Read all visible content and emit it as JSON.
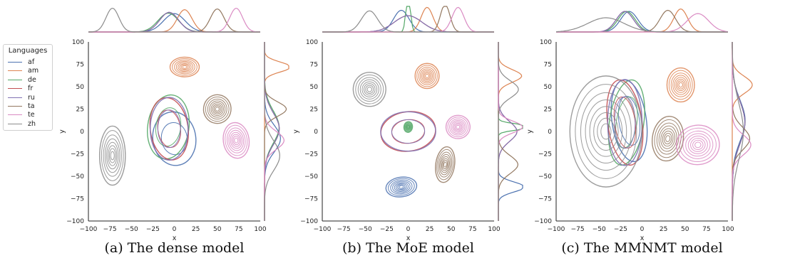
{
  "legend": {
    "title": "Languages",
    "items": [
      {
        "label": "af",
        "color": "#4C72B0"
      },
      {
        "label": "am",
        "color": "#DD8452"
      },
      {
        "label": "de",
        "color": "#55A868"
      },
      {
        "label": "fr",
        "color": "#C44E52"
      },
      {
        "label": "ru",
        "color": "#8172B3"
      },
      {
        "label": "ta",
        "color": "#937860"
      },
      {
        "label": "te",
        "color": "#DA8BC3"
      },
      {
        "label": "zh",
        "color": "#8C8C8C"
      }
    ]
  },
  "chart_data": [
    {
      "type": "scatter",
      "caption": "(a) The dense model",
      "xlabel": "x",
      "ylabel": "y",
      "xlim": [
        -100,
        100
      ],
      "ylim": [
        -100,
        100
      ],
      "xticks": [
        -100,
        -75,
        -50,
        -25,
        0,
        25,
        50,
        75,
        100
      ],
      "yticks": [
        -100,
        -75,
        -50,
        -25,
        0,
        25,
        50,
        75,
        100
      ],
      "series": [
        {
          "name": "af",
          "center": [
            0,
            -8
          ],
          "spread": [
            25,
            30
          ]
        },
        {
          "name": "am",
          "center": [
            12,
            72
          ],
          "spread": [
            17,
            11
          ]
        },
        {
          "name": "de",
          "center": [
            -7,
            5
          ],
          "spread": [
            24,
            36
          ]
        },
        {
          "name": "fr",
          "center": [
            -6,
            3
          ],
          "spread": [
            22,
            35
          ]
        },
        {
          "name": "ru",
          "center": [
            -6,
            3
          ],
          "spread": [
            22,
            35
          ]
        },
        {
          "name": "ta",
          "center": [
            50,
            25
          ],
          "spread": [
            16,
            16
          ]
        },
        {
          "name": "te",
          "center": [
            72,
            -10
          ],
          "spread": [
            15,
            20
          ]
        },
        {
          "name": "zh",
          "center": [
            -72,
            -27
          ],
          "spread": [
            15,
            33
          ]
        }
      ]
    },
    {
      "type": "scatter",
      "caption": "(b) The MoE model",
      "xlabel": "x",
      "ylabel": "y",
      "xlim": [
        -100,
        100
      ],
      "ylim": [
        -100,
        100
      ],
      "xticks": [
        -100,
        -75,
        -50,
        -25,
        0,
        25,
        50,
        75,
        100
      ],
      "yticks": [
        -100,
        -75,
        -50,
        -25,
        0,
        25,
        50,
        75,
        100
      ],
      "series": [
        {
          "name": "af",
          "center": [
            -8,
            -62
          ],
          "spread": [
            18,
            11
          ]
        },
        {
          "name": "am",
          "center": [
            22,
            62
          ],
          "spread": [
            14,
            14
          ]
        },
        {
          "name": "de",
          "center": [
            0,
            5
          ],
          "spread": [
            5,
            6
          ]
        },
        {
          "name": "fr",
          "center": [
            0,
            0
          ],
          "spread": [
            32,
            22
          ]
        },
        {
          "name": "ru",
          "center": [
            0,
            0
          ],
          "spread": [
            32,
            22
          ]
        },
        {
          "name": "ta",
          "center": [
            43,
            -37
          ],
          "spread": [
            11,
            20
          ]
        },
        {
          "name": "te",
          "center": [
            58,
            5
          ],
          "spread": [
            14,
            13
          ]
        },
        {
          "name": "zh",
          "center": [
            -45,
            47
          ],
          "spread": [
            19,
            19
          ]
        }
      ]
    },
    {
      "type": "scatter",
      "caption": "(c) The MMNMT model",
      "xlabel": "x",
      "ylabel": "y",
      "xlim": [
        -100,
        100
      ],
      "ylim": [
        -100,
        100
      ],
      "xticks": [
        -100,
        -75,
        -50,
        -25,
        0,
        25,
        50,
        75,
        100
      ],
      "yticks": [
        -100,
        -75,
        -50,
        -25,
        0,
        25,
        50,
        75,
        100
      ],
      "series": [
        {
          "name": "af",
          "center": [
            -15,
            12
          ],
          "spread": [
            20,
            46
          ]
        },
        {
          "name": "am",
          "center": [
            45,
            52
          ],
          "spread": [
            16,
            19
          ]
        },
        {
          "name": "de",
          "center": [
            -18,
            10
          ],
          "spread": [
            20,
            48
          ]
        },
        {
          "name": "fr",
          "center": [
            -20,
            10
          ],
          "spread": [
            20,
            48
          ]
        },
        {
          "name": "ru",
          "center": [
            -20,
            10
          ],
          "spread": [
            20,
            48
          ]
        },
        {
          "name": "ta",
          "center": [
            30,
            -8
          ],
          "spread": [
            18,
            25
          ]
        },
        {
          "name": "te",
          "center": [
            65,
            -15
          ],
          "spread": [
            25,
            22
          ]
        },
        {
          "name": "zh",
          "center": [
            -42,
            0
          ],
          "spread": [
            42,
            62
          ]
        }
      ]
    }
  ]
}
